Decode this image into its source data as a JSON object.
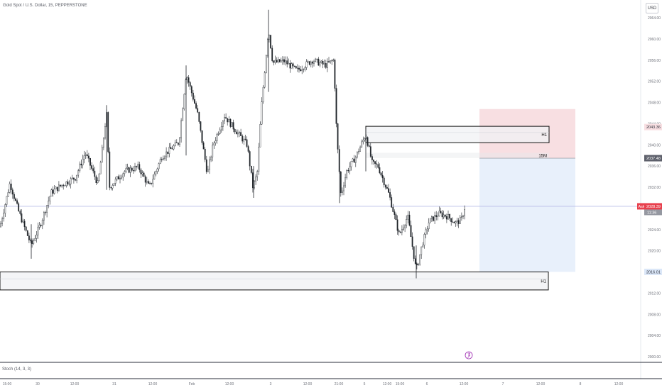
{
  "header": {
    "symbol_title": "Gold Spot / U.S. Dollar, 15, PEPPERSTONE",
    "currency": "USD"
  },
  "indicator": {
    "label": "Stoch (14, 3, 3)"
  },
  "colors": {
    "candle": "#1f2329",
    "ask": "#e8404d",
    "stop_zone": "#f8dfe2",
    "target_zone": "#e8f0fb",
    "current_line": "#b8bce8"
  },
  "chart_data": {
    "type": "candlestick",
    "ylim": [
      1998,
      2066
    ],
    "y_ticks": [
      "2064.00",
      "2060.00",
      "2056.00",
      "2052.00",
      "2048.00",
      "2044.00",
      "2040.00",
      "2036.00",
      "2032.00",
      "2028.00",
      "2024.00",
      "2020.00",
      "2016.00",
      "2012.00",
      "2008.00",
      "2004.00",
      "2000.00"
    ],
    "x_ticks": [
      "15:00",
      "30",
      "12:00",
      "31",
      "12:00",
      "Feb",
      "12:00",
      "3",
      "12:00",
      "21:00",
      "5",
      "12:00",
      "15:00",
      "6",
      "12:00",
      "7",
      "12:00",
      "8",
      "12:00"
    ],
    "price_tags": {
      "stop": "2043.36",
      "entry": "2037.48",
      "ask": "2028.39",
      "ask_label": "Ask",
      "countdown": "11:36",
      "target": "2016.01"
    },
    "zones": [
      {
        "label": "H1",
        "top": 2043.5,
        "bottom": 2040.4
      },
      {
        "label": "15M",
        "top": 2038.5,
        "bottom": 2037.5
      },
      {
        "label": "H1",
        "top": 2016.0,
        "bottom": 2012.6
      }
    ],
    "position": {
      "stop": 2043.36,
      "entry": 2037.48,
      "target": 2016.01
    },
    "current_price": 2028.39,
    "close_path": [
      [
        0,
        2024.5
      ],
      [
        14,
        2032.8
      ],
      [
        26,
        2027.5
      ],
      [
        44,
        2021.0
      ],
      [
        57,
        2025.0
      ],
      [
        72,
        2031.0
      ],
      [
        88,
        2032.5
      ],
      [
        106,
        2033.8
      ],
      [
        120,
        2038.5
      ],
      [
        138,
        2032.5
      ],
      [
        150,
        2046.0
      ],
      [
        154,
        2032.0
      ],
      [
        175,
        2035.0
      ],
      [
        195,
        2035.8
      ],
      [
        210,
        2032.0
      ],
      [
        228,
        2037.8
      ],
      [
        252,
        2040.5
      ],
      [
        262,
        2053.5
      ],
      [
        278,
        2046.0
      ],
      [
        292,
        2034.5
      ],
      [
        300,
        2040.0
      ],
      [
        316,
        2045.5
      ],
      [
        333,
        2042.5
      ],
      [
        348,
        2040.0
      ],
      [
        356,
        2032.0
      ],
      [
        362,
        2034.5
      ],
      [
        368,
        2047.0
      ],
      [
        378,
        2062.0
      ],
      [
        384,
        2055.5
      ],
      [
        400,
        2055.8
      ],
      [
        418,
        2054.0
      ],
      [
        440,
        2056.0
      ],
      [
        458,
        2055.0
      ],
      [
        470,
        2056.0
      ],
      [
        474,
        2042.0
      ],
      [
        480,
        2030.5
      ],
      [
        488,
        2035.0
      ],
      [
        500,
        2037.5
      ],
      [
        515,
        2042.0
      ],
      [
        524,
        2036.5
      ],
      [
        532,
        2036.0
      ],
      [
        548,
        2030.5
      ],
      [
        562,
        2023.0
      ],
      [
        574,
        2026.5
      ],
      [
        586,
        2016.2
      ],
      [
        594,
        2021.0
      ],
      [
        604,
        2025.5
      ],
      [
        618,
        2027.0
      ],
      [
        630,
        2026.5
      ],
      [
        642,
        2025.2
      ],
      [
        650,
        2026.0
      ],
      [
        656,
        2029.0
      ]
    ]
  }
}
